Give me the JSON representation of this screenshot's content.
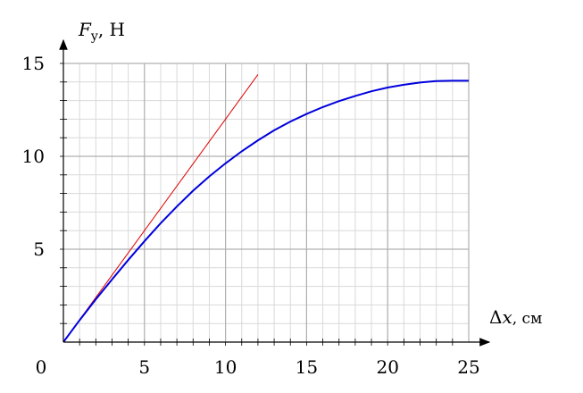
{
  "chart_data": {
    "type": "line",
    "ylabel": {
      "symbol": "F",
      "subscript": "y",
      "unit": ", Н"
    },
    "xlabel": {
      "prefix": "Δ",
      "symbol": "x",
      "unit": ", см"
    },
    "xlim": [
      0,
      25
    ],
    "ylim": [
      0,
      15
    ],
    "xticks": [
      0,
      5,
      10,
      15,
      20,
      25
    ],
    "yticks": [
      5,
      10,
      15
    ],
    "grid": true,
    "minor_grid_step": 1,
    "series": [
      {
        "color": "#e00000",
        "x": [
          0,
          12
        ],
        "values": [
          0,
          14.4
        ]
      },
      {
        "color": "#0000dd",
        "x": [
          0,
          1,
          2,
          3,
          4,
          5,
          6,
          7,
          8,
          9,
          10,
          11,
          12,
          13,
          14,
          15,
          16,
          17,
          18,
          19,
          20,
          21,
          22,
          23,
          24,
          25
        ],
        "values": [
          0,
          1.18,
          2.3,
          3.37,
          4.42,
          5.43,
          6.4,
          7.3,
          8.15,
          8.92,
          9.62,
          10.27,
          10.86,
          11.4,
          11.87,
          12.28,
          12.65,
          12.97,
          13.25,
          13.5,
          13.7,
          13.85,
          13.97,
          14.05,
          14.07,
          14.07
        ]
      }
    ]
  }
}
